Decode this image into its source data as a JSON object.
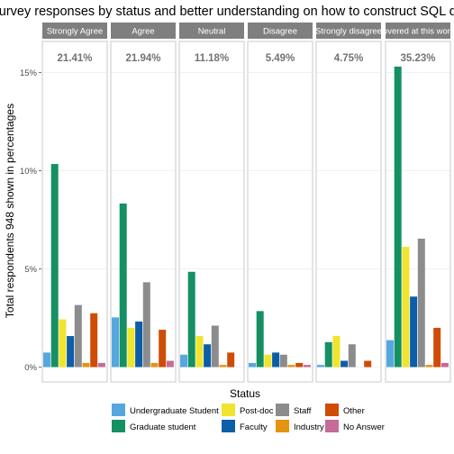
{
  "chart_data": {
    "type": "bar",
    "title": "Post-survey responses by status and better understanding on how to construct SQL queries",
    "xlabel": "Status",
    "ylabel": "Total respondents 948 shown in percentages",
    "ylim": [
      0,
      16
    ],
    "y_ticks": [
      0,
      5,
      10,
      15
    ],
    "y_tick_labels": [
      "0%",
      "5%",
      "10%",
      "15%"
    ],
    "grid": true,
    "legend_position": "bottom",
    "panels": [
      {
        "label": "Strongly Agree",
        "percent": "21.41%"
      },
      {
        "label": "Agree",
        "percent": "21.94%"
      },
      {
        "label": "Neutral",
        "percent": "11.18%"
      },
      {
        "label": "Disagree",
        "percent": "5.49%"
      },
      {
        "label": "Strongly disagree",
        "percent": "4.75%"
      },
      {
        "label": "Not covered at this workshop",
        "percent": "35.23%"
      }
    ],
    "series": [
      {
        "name": "Undergraduate Student",
        "color": "#56a7e0",
        "values": [
          0.74,
          2.53,
          0.63,
          0.21,
          0.11,
          1.37
        ]
      },
      {
        "name": "Graduate student",
        "color": "#159063",
        "values": [
          10.34,
          8.33,
          4.85,
          2.85,
          1.27,
          15.3
        ]
      },
      {
        "name": "Post-doc",
        "color": "#f0e42e",
        "values": [
          2.43,
          2.0,
          1.58,
          0.63,
          1.58,
          6.12
        ]
      },
      {
        "name": "Faculty",
        "color": "#0d5ea8",
        "values": [
          1.58,
          2.32,
          1.16,
          0.74,
          0.32,
          3.59
        ]
      },
      {
        "name": "Staff",
        "color": "#8c8c8c",
        "values": [
          3.16,
          4.32,
          2.11,
          0.63,
          1.16,
          6.54
        ]
      },
      {
        "name": "Industry",
        "color": "#e4940e",
        "values": [
          0.21,
          0.21,
          0.11,
          0.11,
          0.0,
          0.11
        ]
      },
      {
        "name": "Other",
        "color": "#cf4c06",
        "values": [
          2.74,
          1.9,
          0.74,
          0.21,
          0.32,
          2.0
        ]
      },
      {
        "name": "No Answer",
        "color": "#c66b98",
        "values": [
          0.21,
          0.32,
          0.0,
          0.11,
          0.0,
          0.21
        ]
      }
    ]
  }
}
